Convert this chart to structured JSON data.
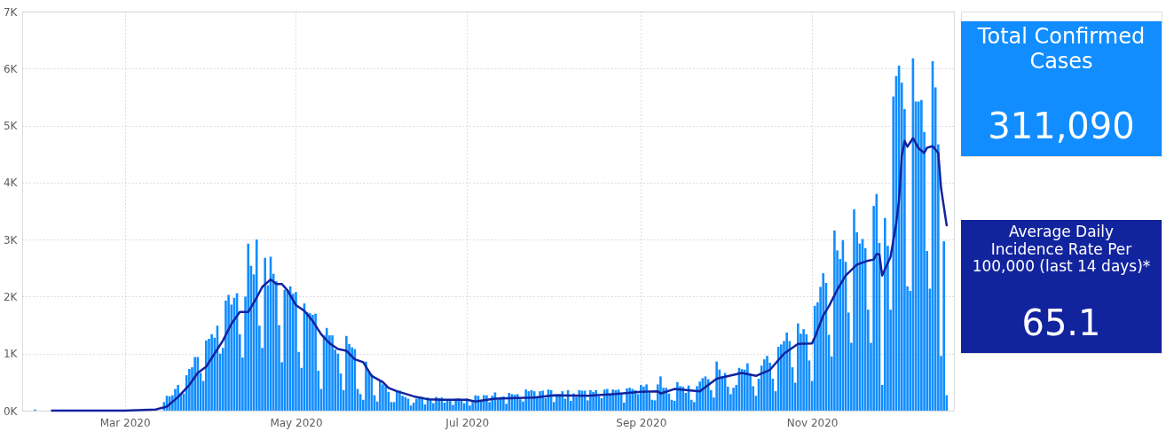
{
  "chart_data": [
    {
      "type": "bar",
      "xlim": [
        "2020-01-26",
        "2020-12-20"
      ],
      "ylim": [
        0,
        7000
      ],
      "xticks": [
        {
          "value": "2020-03-01",
          "label": "Mar 2020"
        },
        {
          "value": "2020-05-01",
          "label": "May 2020"
        },
        {
          "value": "2020-07-01",
          "label": "Jul 2020"
        },
        {
          "value": "2020-09-01",
          "label": "Sep 2020"
        },
        {
          "value": "2020-11-01",
          "label": "Nov 2020"
        }
      ],
      "yticks": [
        {
          "value": 0,
          "label": "0K"
        },
        {
          "value": 1000,
          "label": "1K"
        },
        {
          "value": 2000,
          "label": "2K"
        },
        {
          "value": 3000,
          "label": "3K"
        },
        {
          "value": 4000,
          "label": "4K"
        },
        {
          "value": 5000,
          "label": "5K"
        },
        {
          "value": 6000,
          "label": "6K"
        },
        {
          "value": 7000,
          "label": "7K"
        }
      ],
      "grid": true,
      "annotations": [
        "Total Confirmed Cases",
        "311,090",
        "Average Daily Incidence Rate Per 100,000 (last 14 days)*",
        "65.1"
      ],
      "series": [
        {
          "color": "#118dff",
          "x": [
            "2020-01-29",
            "2020-03-01",
            "2020-03-02",
            "2020-03-03",
            "2020-03-04",
            "2020-03-05",
            "2020-03-06",
            "2020-03-07",
            "2020-03-08",
            "2020-03-09",
            "2020-03-10",
            "2020-03-11",
            "2020-03-12",
            "2020-03-13",
            "2020-03-14",
            "2020-03-15",
            "2020-03-16",
            "2020-03-17",
            "2020-03-18",
            "2020-03-19",
            "2020-03-20",
            "2020-03-21",
            "2020-03-22",
            "2020-03-23",
            "2020-03-24",
            "2020-03-25",
            "2020-03-26",
            "2020-03-27",
            "2020-03-28",
            "2020-03-29",
            "2020-03-30",
            "2020-03-31",
            "2020-04-01",
            "2020-04-02",
            "2020-04-03",
            "2020-04-04",
            "2020-04-05",
            "2020-04-06",
            "2020-04-07",
            "2020-04-08",
            "2020-04-09",
            "2020-04-10",
            "2020-04-11",
            "2020-04-12",
            "2020-04-13",
            "2020-04-14",
            "2020-04-15",
            "2020-04-16",
            "2020-04-17",
            "2020-04-18",
            "2020-04-19",
            "2020-04-20",
            "2020-04-21",
            "2020-04-22",
            "2020-04-23",
            "2020-04-24",
            "2020-04-25",
            "2020-04-26",
            "2020-04-27",
            "2020-04-28",
            "2020-04-29",
            "2020-04-30",
            "2020-05-01",
            "2020-05-02",
            "2020-05-03",
            "2020-05-04",
            "2020-05-05",
            "2020-05-06",
            "2020-05-07",
            "2020-05-08",
            "2020-05-09",
            "2020-05-10",
            "2020-05-11",
            "2020-05-12",
            "2020-05-13",
            "2020-05-14",
            "2020-05-15",
            "2020-05-16",
            "2020-05-17",
            "2020-05-18",
            "2020-05-19",
            "2020-05-20",
            "2020-05-21",
            "2020-05-22",
            "2020-05-23",
            "2020-05-24",
            "2020-05-25",
            "2020-05-26",
            "2020-05-27",
            "2020-05-28",
            "2020-05-29",
            "2020-05-30",
            "2020-05-31",
            "2020-06-01",
            "2020-06-02",
            "2020-06-03",
            "2020-06-04",
            "2020-06-05",
            "2020-06-06",
            "2020-06-07",
            "2020-06-08",
            "2020-06-09",
            "2020-06-10",
            "2020-06-11",
            "2020-06-12",
            "2020-06-13",
            "2020-06-14",
            "2020-06-15",
            "2020-06-16",
            "2020-06-17",
            "2020-06-18",
            "2020-06-19",
            "2020-06-20",
            "2020-06-21",
            "2020-06-22",
            "2020-06-23",
            "2020-06-24",
            "2020-06-25",
            "2020-06-26",
            "2020-06-27",
            "2020-06-28",
            "2020-06-29",
            "2020-06-30",
            "2020-07-01",
            "2020-07-02",
            "2020-07-03",
            "2020-07-04",
            "2020-07-05",
            "2020-07-06",
            "2020-07-07",
            "2020-07-08",
            "2020-07-09",
            "2020-07-10",
            "2020-07-11",
            "2020-07-12",
            "2020-07-13",
            "2020-07-14",
            "2020-07-15",
            "2020-07-16",
            "2020-07-17",
            "2020-07-18",
            "2020-07-19",
            "2020-07-20",
            "2020-07-21",
            "2020-07-22",
            "2020-07-23",
            "2020-07-24",
            "2020-07-25",
            "2020-07-26",
            "2020-07-27",
            "2020-07-28",
            "2020-07-29",
            "2020-07-30",
            "2020-07-31",
            "2020-08-01",
            "2020-08-02",
            "2020-08-03",
            "2020-08-04",
            "2020-08-05",
            "2020-08-06",
            "2020-08-07",
            "2020-08-08",
            "2020-08-09",
            "2020-08-10",
            "2020-08-11",
            "2020-08-12",
            "2020-08-13",
            "2020-08-14",
            "2020-08-15",
            "2020-08-16",
            "2020-08-17",
            "2020-08-18",
            "2020-08-19",
            "2020-08-20",
            "2020-08-21",
            "2020-08-22",
            "2020-08-23",
            "2020-08-24",
            "2020-08-25",
            "2020-08-26",
            "2020-08-27",
            "2020-08-28",
            "2020-08-29",
            "2020-08-30",
            "2020-08-31",
            "2020-09-01",
            "2020-09-02",
            "2020-09-03",
            "2020-09-04",
            "2020-09-05",
            "2020-09-06",
            "2020-09-07",
            "2020-09-08",
            "2020-09-09",
            "2020-09-10",
            "2020-09-11",
            "2020-09-12",
            "2020-09-13",
            "2020-09-14",
            "2020-09-15",
            "2020-09-16",
            "2020-09-17",
            "2020-09-18",
            "2020-09-19",
            "2020-09-20",
            "2020-09-21",
            "2020-09-22",
            "2020-09-23",
            "2020-09-24",
            "2020-09-25",
            "2020-09-26",
            "2020-09-27",
            "2020-09-28",
            "2020-09-29",
            "2020-09-30",
            "2020-10-01",
            "2020-10-02",
            "2020-10-03",
            "2020-10-04",
            "2020-10-05",
            "2020-10-06",
            "2020-10-07",
            "2020-10-08",
            "2020-10-09",
            "2020-10-10",
            "2020-10-11",
            "2020-10-12",
            "2020-10-13",
            "2020-10-14",
            "2020-10-15",
            "2020-10-16",
            "2020-10-17",
            "2020-10-18",
            "2020-10-19",
            "2020-10-20",
            "2020-10-21",
            "2020-10-22",
            "2020-10-23",
            "2020-10-24",
            "2020-10-25",
            "2020-10-26",
            "2020-10-27",
            "2020-10-28",
            "2020-10-29",
            "2020-10-30",
            "2020-10-31",
            "2020-11-01",
            "2020-11-02",
            "2020-11-03",
            "2020-11-04",
            "2020-11-05",
            "2020-11-06",
            "2020-11-07",
            "2020-11-08",
            "2020-11-09",
            "2020-11-10",
            "2020-11-11",
            "2020-11-12",
            "2020-11-13",
            "2020-11-14",
            "2020-11-15",
            "2020-11-16",
            "2020-11-17",
            "2020-11-18",
            "2020-11-19",
            "2020-11-20",
            "2020-11-21",
            "2020-11-22",
            "2020-11-23",
            "2020-11-24",
            "2020-11-25",
            "2020-11-26",
            "2020-11-27",
            "2020-11-28",
            "2020-11-29",
            "2020-11-30",
            "2020-12-01",
            "2020-12-02",
            "2020-12-03",
            "2020-12-04",
            "2020-12-05",
            "2020-12-06",
            "2020-12-07",
            "2020-12-08",
            "2020-12-09",
            "2020-12-10",
            "2020-12-11",
            "2020-12-12",
            "2020-12-13",
            "2020-12-14",
            "2020-12-15",
            "2020-12-16",
            "2020-12-17",
            "2020-12-18",
            "2020-12-19"
          ],
          "values": [
            20,
            null,
            null,
            null,
            null,
            null,
            null,
            null,
            null,
            null,
            null,
            null,
            null,
            null,
            null,
            150,
            260,
            250,
            270,
            380,
            450,
            310,
            300,
            620,
            730,
            760,
            940,
            940,
            660,
            520,
            1230,
            1260,
            1340,
            1280,
            1490,
            1000,
            1100,
            1930,
            2030,
            1860,
            1980,
            2060,
            1340,
            930,
            2000,
            2930,
            2540,
            2390,
            3000,
            1490,
            1100,
            2680,
            2200,
            2700,
            2400,
            2270,
            1500,
            850,
            2120,
            2110,
            2180,
            2050,
            2080,
            1030,
            750,
            1880,
            1730,
            1710,
            1680,
            1700,
            700,
            380,
            1320,
            1450,
            1320,
            1320,
            1070,
            1000,
            650,
            360,
            1310,
            1170,
            1110,
            1080,
            380,
            290,
            190,
            860,
            690,
            640,
            270,
            160,
            510,
            460,
            430,
            330,
            150,
            150,
            340,
            350,
            260,
            240,
            210,
            90,
            140,
            210,
            230,
            240,
            110,
            230,
            210,
            130,
            240,
            220,
            230,
            140,
            200,
            170,
            100,
            210,
            220,
            200,
            130,
            210,
            90,
            150,
            270,
            260,
            190,
            270,
            270,
            150,
            260,
            320,
            200,
            240,
            250,
            120,
            310,
            290,
            280,
            290,
            200,
            160,
            370,
            340,
            360,
            340,
            240,
            340,
            350,
            220,
            370,
            360,
            150,
            290,
            290,
            340,
            210,
            360,
            170,
            300,
            240,
            360,
            350,
            350,
            180,
            360,
            330,
            360,
            250,
            220,
            370,
            380,
            280,
            370,
            360,
            370,
            290,
            140,
            390,
            400,
            380,
            360,
            290,
            450,
            420,
            460,
            320,
            190,
            180,
            460,
            600,
            400,
            400,
            300,
            190,
            170,
            500,
            430,
            420,
            310,
            440,
            190,
            150,
            430,
            510,
            570,
            600,
            550,
            360,
            230,
            860,
            720,
            610,
            660,
            420,
            290,
            400,
            450,
            750,
            730,
            720,
            830,
            650,
            430,
            260,
            560,
            790,
            900,
            960,
            840,
            560,
            340,
            1120,
            1160,
            1220,
            1370,
            1220,
            760,
            490,
            1530,
            1350,
            1430,
            1340,
            880,
            520,
            1840,
            1900,
            2170,
            2410,
            2240,
            1330,
            950,
            3160,
            2810,
            2660,
            2990,
            2610,
            1720,
            1190,
            3530,
            3130,
            2930,
            3010,
            2850,
            1770,
            1190,
            3590,
            3800,
            2940,
            450,
            3380,
            2890,
            1770,
            5510,
            5870,
            6050,
            5750,
            5290,
            2180,
            2100,
            6180,
            5420,
            5420,
            5450,
            4890,
            2800,
            2140,
            6130,
            5670,
            4670,
            960,
            2970,
            270
          ]
        },
        {
          "type": "line",
          "color": "#12239e",
          "x": [
            "2020-02-04",
            "2020-03-01",
            "2020-03-12",
            "2020-03-16",
            "2020-03-20",
            "2020-03-24",
            "2020-03-27",
            "2020-03-30",
            "2020-04-02",
            "2020-04-05",
            "2020-04-08",
            "2020-04-11",
            "2020-04-14",
            "2020-04-17",
            "2020-04-19",
            "2020-04-22",
            "2020-04-24",
            "2020-04-26",
            "2020-04-28",
            "2020-05-01",
            "2020-05-04",
            "2020-05-07",
            "2020-05-10",
            "2020-05-13",
            "2020-05-16",
            "2020-05-19",
            "2020-05-22",
            "2020-05-25",
            "2020-05-28",
            "2020-06-01",
            "2020-06-03",
            "2020-06-06",
            "2020-06-12",
            "2020-06-17",
            "2020-06-22",
            "2020-07-01",
            "2020-07-04",
            "2020-07-11",
            "2020-07-19",
            "2020-07-25",
            "2020-08-01",
            "2020-08-13",
            "2020-08-23",
            "2020-09-01",
            "2020-09-07",
            "2020-09-08",
            "2020-09-13",
            "2020-09-22",
            "2020-09-28",
            "2020-10-07",
            "2020-10-12",
            "2020-10-17",
            "2020-10-22",
            "2020-10-27",
            "2020-11-01",
            "2020-11-02",
            "2020-11-05",
            "2020-11-07",
            "2020-11-10",
            "2020-11-13",
            "2020-11-17",
            "2020-11-21",
            "2020-11-23",
            "2020-11-24",
            "2020-11-25",
            "2020-11-26",
            "2020-11-27",
            "2020-11-29",
            "2020-12-01",
            "2020-12-02",
            "2020-12-03",
            "2020-12-04",
            "2020-12-05",
            "2020-12-07",
            "2020-12-09",
            "2020-12-11",
            "2020-12-12",
            "2020-12-14",
            "2020-12-16",
            "2020-12-17",
            "2020-12-19"
          ],
          "values": [
            0,
            0,
            20,
            70,
            240,
            450,
            660,
            770,
            1000,
            1230,
            1520,
            1730,
            1730,
            1980,
            2170,
            2300,
            2220,
            2220,
            2110,
            1850,
            1750,
            1570,
            1340,
            1180,
            1080,
            1050,
            900,
            850,
            610,
            500,
            400,
            340,
            250,
            200,
            190,
            190,
            160,
            210,
            220,
            230,
            270,
            260,
            290,
            330,
            340,
            300,
            380,
            340,
            560,
            660,
            610,
            715,
            1000,
            1170,
            1180,
            1285,
            1670,
            1830,
            2120,
            2370,
            2560,
            2630,
            2650,
            2750,
            2740,
            2370,
            2480,
            2700,
            3280,
            3690,
            4470,
            4730,
            4630,
            4780,
            4600,
            4520,
            4610,
            4640,
            4520,
            3900,
            3250
          ]
        }
      ]
    }
  ]
}
